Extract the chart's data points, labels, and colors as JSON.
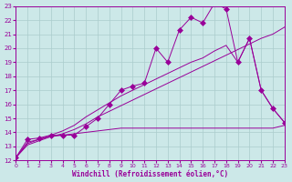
{
  "xlabel": "Windchill (Refroidissement éolien,°C)",
  "bg_color": "#cce8e8",
  "grid_color": "#aacccc",
  "line_color": "#990099",
  "xlim": [
    0,
    23
  ],
  "ylim": [
    12,
    23
  ],
  "xticks": [
    0,
    1,
    2,
    3,
    4,
    5,
    6,
    7,
    8,
    9,
    10,
    11,
    12,
    13,
    14,
    15,
    16,
    17,
    18,
    19,
    20,
    21,
    22,
    23
  ],
  "yticks": [
    12,
    13,
    14,
    15,
    16,
    17,
    18,
    19,
    20,
    21,
    22,
    23
  ],
  "series1_x": [
    0,
    1,
    2,
    3,
    4,
    5,
    6,
    7,
    8,
    9,
    10,
    11,
    12,
    13,
    14,
    15,
    16,
    17,
    18,
    19,
    20,
    21,
    22,
    23
  ],
  "series1_y": [
    12.2,
    13.5,
    13.6,
    13.8,
    13.8,
    13.8,
    14.4,
    15.0,
    16.0,
    17.0,
    17.3,
    17.5,
    20.0,
    19.0,
    21.3,
    22.2,
    21.8,
    23.2,
    22.8,
    19.0,
    20.7,
    17.0,
    15.7,
    14.7
  ],
  "series2_x": [
    0,
    1,
    2,
    3,
    4,
    5,
    6,
    7,
    8,
    9,
    10,
    11,
    12,
    13,
    14,
    15,
    16,
    17,
    18,
    19,
    20,
    21,
    22,
    23
  ],
  "series2_y": [
    12.2,
    13.2,
    13.5,
    13.8,
    14.1,
    14.5,
    15.1,
    15.6,
    16.1,
    16.6,
    17.0,
    17.4,
    17.8,
    18.2,
    18.6,
    19.0,
    19.3,
    19.8,
    20.2,
    19.0,
    20.7,
    17.0,
    15.7,
    14.7
  ],
  "series3_x": [
    0,
    1,
    2,
    3,
    4,
    5,
    6,
    7,
    8,
    9,
    10,
    11,
    12,
    13,
    14,
    15,
    16,
    17,
    18,
    19,
    20,
    21,
    22,
    23
  ],
  "series3_y": [
    12.2,
    13.1,
    13.4,
    13.7,
    13.9,
    14.2,
    14.6,
    15.1,
    15.5,
    15.9,
    16.3,
    16.7,
    17.1,
    17.5,
    17.9,
    18.3,
    18.7,
    19.1,
    19.5,
    19.9,
    20.3,
    20.7,
    21.0,
    21.5
  ],
  "series4_x": [
    0,
    1,
    2,
    3,
    4,
    5,
    6,
    7,
    8,
    9,
    10,
    11,
    12,
    13,
    14,
    15,
    16,
    17,
    18,
    19,
    20,
    21,
    22,
    23
  ],
  "series4_y": [
    12.2,
    13.3,
    13.5,
    13.7,
    13.8,
    13.9,
    14.0,
    14.1,
    14.2,
    14.3,
    14.3,
    14.3,
    14.3,
    14.3,
    14.3,
    14.3,
    14.3,
    14.3,
    14.3,
    14.3,
    14.3,
    14.3,
    14.3,
    14.5
  ]
}
